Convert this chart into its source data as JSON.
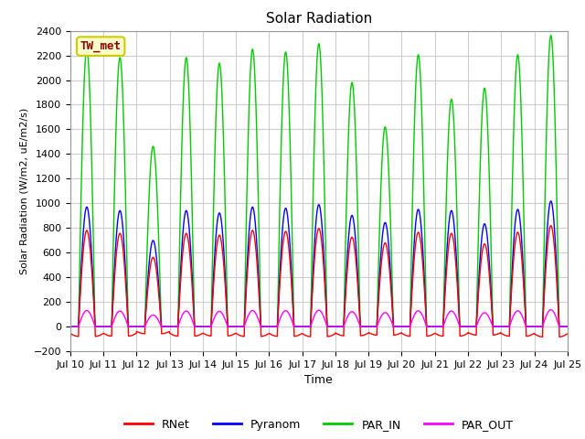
{
  "title": "Solar Radiation",
  "xlabel": "Time",
  "ylabel": "Solar Radiation (W/m2, uE/m2/s)",
  "ylim": [
    -200,
    2400
  ],
  "yticks": [
    -200,
    0,
    200,
    400,
    600,
    800,
    1000,
    1200,
    1400,
    1600,
    1800,
    2000,
    2200,
    2400
  ],
  "x_start": 10,
  "x_end": 25,
  "xtick_positions": [
    10,
    11,
    12,
    13,
    14,
    15,
    16,
    17,
    18,
    19,
    20,
    21,
    22,
    23,
    24,
    25
  ],
  "xtick_labels": [
    "Jul 10",
    "Jul 11",
    "Jul 12",
    "Jul 13",
    "Jul 14",
    "Jul 15",
    "Jul 16",
    "Jul 17",
    "Jul 18",
    "Jul 19",
    "Jul 20",
    "Jul 21",
    "Jul 22",
    "Jul 23",
    "Jul 24",
    "Jul 25"
  ],
  "colors": {
    "RNet": "#ff0000",
    "Pyranom": "#0000ff",
    "PAR_IN": "#00cc00",
    "PAR_OUT": "#ff00ff"
  },
  "station_label": "TW_met",
  "station_label_color": "#8b0000",
  "station_box_facecolor": "#ffffcc",
  "station_box_edgecolor": "#cccc00",
  "fig_bg_color": "#ffffff",
  "plot_bg_color": "#ffffff",
  "grid_color": "#cccccc",
  "legend_entries": [
    "RNet",
    "Pyranom",
    "PAR_IN",
    "PAR_OUT"
  ],
  "n_days": 15,
  "points_per_day": 144,
  "rnet_peak": 780,
  "pyranom_peak": 970,
  "par_in_peak": 2250,
  "par_out_peak": 130,
  "rnet_night": -80,
  "day_scales": [
    1.0,
    0.97,
    0.72,
    0.97,
    0.95,
    1.0,
    0.99,
    1.02,
    0.93,
    0.87,
    0.98,
    0.97,
    0.86,
    0.98,
    1.05
  ],
  "par_in_scales": [
    1.0,
    0.97,
    0.65,
    0.97,
    0.95,
    1.0,
    0.99,
    1.02,
    0.88,
    0.72,
    0.98,
    0.82,
    0.86,
    0.98,
    1.05
  ]
}
